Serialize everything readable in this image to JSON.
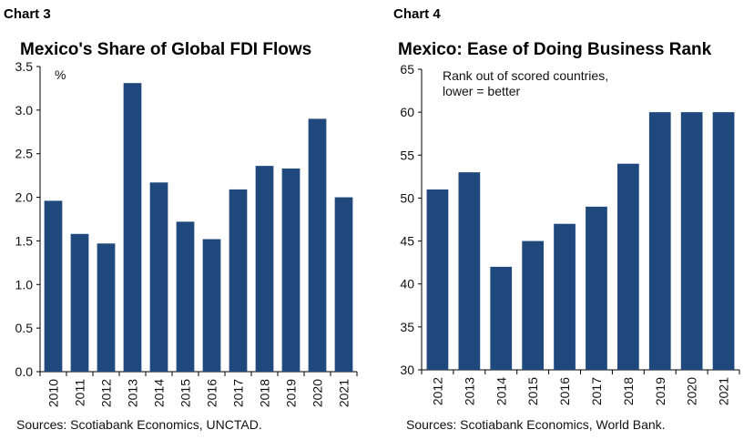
{
  "chart_data": [
    {
      "type": "bar",
      "label": "Chart 3",
      "title": "Mexico's Share of Global FDI Flows",
      "unit_label": "%",
      "categories": [
        "2010",
        "2011",
        "2012",
        "2013",
        "2014",
        "2015",
        "2016",
        "2017",
        "2018",
        "2019",
        "2020",
        "2021"
      ],
      "values": [
        1.96,
        1.58,
        1.47,
        3.31,
        2.17,
        1.72,
        1.52,
        2.09,
        2.36,
        2.33,
        2.9,
        2.0
      ],
      "ylim": [
        0,
        3.5
      ],
      "yticks": [
        "0.0",
        "0.5",
        "1.0",
        "1.5",
        "2.0",
        "2.5",
        "3.0",
        "3.5"
      ],
      "source": "Sources: Scotiabank Economics, UNCTAD.",
      "color": "#1f497d",
      "grid": false
    },
    {
      "type": "bar",
      "label": "Chart 4",
      "title": "Mexico: Ease of Doing Business Rank",
      "annotation": [
        "Rank out of scored countries,",
        "lower = better"
      ],
      "categories": [
        "2012",
        "2013",
        "2014",
        "2015",
        "2016",
        "2017",
        "2018",
        "2019",
        "2020",
        "2021"
      ],
      "values": [
        51,
        53,
        42,
        45,
        47,
        49,
        54,
        60,
        60,
        60
      ],
      "ylim": [
        30,
        65
      ],
      "yticks": [
        "30",
        "35",
        "40",
        "45",
        "50",
        "55",
        "60",
        "65"
      ],
      "source": "Sources: Scotiabank Economics, World Bank.",
      "color": "#1f497d",
      "grid": false
    }
  ]
}
